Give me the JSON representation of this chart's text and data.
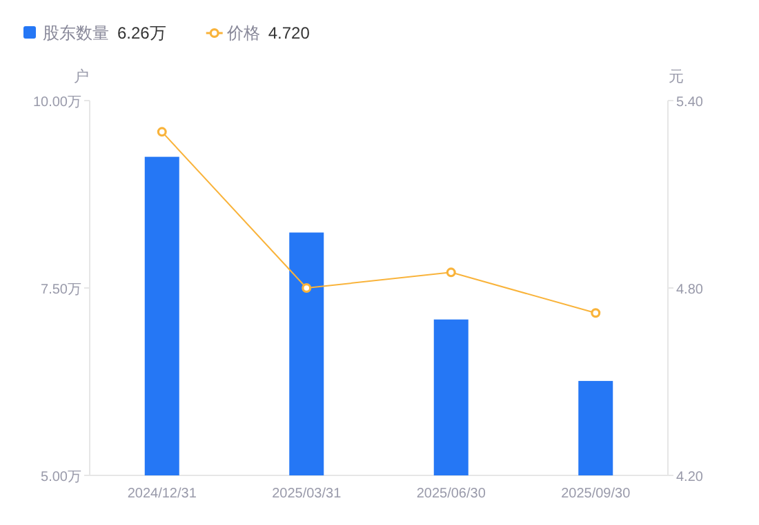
{
  "chart_data": {
    "type": "bar",
    "ylabel": "户",
    "y2label": "元",
    "categories": [
      "2024/12/31",
      "2025/03/31",
      "2025/06/30",
      "2025/09/30"
    ],
    "series": [
      {
        "name": "股东数量",
        "color": "#2577f5",
        "values": [
          9.25,
          8.24,
          7.08,
          6.26
        ]
      },
      {
        "name": "价格",
        "type": "line",
        "axis": "y2",
        "color": "#f9b33a",
        "values": [
          5.3,
          4.8,
          4.85,
          4.72
        ],
        "marker": "circle"
      }
    ],
    "ylim": [
      5,
      10
    ],
    "yticks": [
      {
        "value": 5,
        "label": "5.00万"
      },
      {
        "value": 7.5,
        "label": "7.50万"
      },
      {
        "value": 10,
        "label": "10.00万"
      }
    ],
    "y2lim": [
      4.2,
      5.4
    ],
    "y2ticks": [
      {
        "value": 4.2,
        "label": "4.20"
      },
      {
        "value": 4.8,
        "label": "4.80"
      },
      {
        "value": 5.4,
        "label": "5.40"
      }
    ],
    "annotations": [
      "6.26万",
      "4.720"
    ],
    "legend": "top left",
    "grid": false
  }
}
